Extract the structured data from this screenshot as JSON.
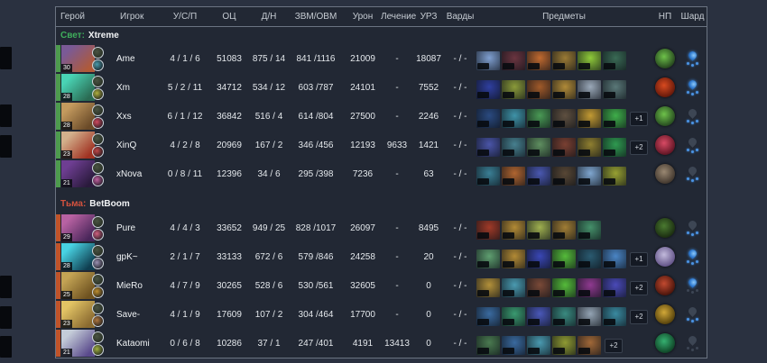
{
  "header": {
    "columns": [
      "Герой",
      "Игрок",
      "У/С/П",
      "ОЦ",
      "Д/Н",
      "ЗВМ/ОВМ",
      "Урон",
      "Лечение",
      "УРЗ",
      "Варды",
      "Предметы",
      "НП",
      "Шард"
    ]
  },
  "colors": {
    "radiant_accent": "#3fae5c",
    "dire_accent": "#d4523e",
    "scepter_active": "#3f8de0",
    "inactive_grey": "#3d4654"
  },
  "teams": [
    {
      "side_label": "Свет:",
      "name": "Xtreme",
      "side_color": "#3fae5c",
      "bar_color": "#4d9b4d",
      "players": [
        {
          "name": "Ame",
          "level": "30",
          "kda": "4 / 1 / 6",
          "net_worth": "51083",
          "lh_dn": "875 / 14",
          "gpm_xpm": "841 /1116",
          "damage": "21009",
          "healing": "-",
          "building_damage": "18087",
          "wards": "- / -",
          "extra_items": "",
          "scepter": true,
          "shard": true,
          "portrait_colors": [
            "#7a5a96",
            "#b05a38"
          ],
          "facet_color": "#4a9aaa",
          "item_colors": [
            "#7f9fd0",
            "#6a3540",
            "#c06a30",
            "#9a7a35",
            "#8fca3a",
            "#3a6a55"
          ],
          "neutral_colors": [
            "#6ec24a",
            "#1f3a1a"
          ]
        },
        {
          "name": "Xm",
          "level": "28",
          "kda": "5 / 2 / 11",
          "net_worth": "34712",
          "lh_dn": "534 / 12",
          "gpm_xpm": "603 /787",
          "damage": "24101",
          "healing": "-",
          "building_damage": "7552",
          "wards": "- / -",
          "extra_items": "",
          "scepter": true,
          "shard": true,
          "portrait_colors": [
            "#49d3b4",
            "#2a6a52"
          ],
          "facet_color": "#b0b040",
          "item_colors": [
            "#2f3f9f",
            "#8a9a3a",
            "#a05a2a",
            "#b08a38",
            "#9aa8b8",
            "#5a7878"
          ],
          "neutral_colors": [
            "#d84a20",
            "#5a1408"
          ]
        },
        {
          "name": "Xxs",
          "level": "28",
          "kda": "6 / 1 / 12",
          "net_worth": "36842",
          "lh_dn": "516 / 4",
          "gpm_xpm": "614 /804",
          "damage": "27500",
          "healing": "-",
          "building_damage": "2246",
          "wards": "- / -",
          "extra_items": "+1",
          "scepter": false,
          "shard": true,
          "portrait_colors": [
            "#c39a5e",
            "#6a4a28"
          ],
          "facet_color": "#d04a60",
          "item_colors": [
            "#2a4a80",
            "#3f93a8",
            "#4a9a55",
            "#5f5040",
            "#c29a33",
            "#3fae4a"
          ],
          "neutral_colors": [
            "#6ec24a",
            "#20401c"
          ]
        },
        {
          "name": "XinQ",
          "level": "23",
          "kda": "4 / 2 / 8",
          "net_worth": "20969",
          "lh_dn": "167 / 2",
          "gpm_xpm": "346 /456",
          "damage": "12193",
          "healing": "9633",
          "building_damage": "1421",
          "wards": "- / -",
          "extra_items": "+2",
          "scepter": false,
          "shard": true,
          "portrait_colors": [
            "#d3b08c",
            "#a03222"
          ],
          "facet_color": "#c04848",
          "item_colors": [
            "#4a55a8",
            "#47808f",
            "#5f8f60",
            "#7a4032",
            "#8f7f30",
            "#2f9a50"
          ],
          "neutral_colors": [
            "#d84a64",
            "#55101e"
          ]
        },
        {
          "name": "xNova",
          "level": "21",
          "kda": "0 / 8 / 11",
          "net_worth": "12396",
          "lh_dn": "34 / 6",
          "gpm_xpm": "295 /398",
          "damage": "7236",
          "healing": "-",
          "building_damage": "63",
          "wards": "- / -",
          "extra_items": "",
          "scepter": false,
          "shard": true,
          "portrait_colors": [
            "#6e3e92",
            "#2a1a3c"
          ],
          "facet_color": "#c060a0",
          "item_colors": [
            "#3a7f95",
            "#b06530",
            "#4a58b0",
            "#584735",
            "#7fa6cf",
            "#97a032"
          ],
          "neutral_colors": [
            "#9a8872",
            "#3a3028"
          ]
        }
      ]
    },
    {
      "side_label": "Тьма:",
      "name": "BetBoom",
      "side_color": "#d4523e",
      "bar_color": "#c05329",
      "players": [
        {
          "name": "Pure",
          "level": "29",
          "kda": "4 / 4 / 3",
          "net_worth": "33652",
          "lh_dn": "949 / 25",
          "gpm_xpm": "828 /1017",
          "damage": "26097",
          "healing": "-",
          "building_damage": "8495",
          "wards": "- / -",
          "extra_items": "",
          "scepter": false,
          "shard": true,
          "portrait_colors": [
            "#b862a2",
            "#49265a"
          ],
          "facet_color": "#d06080",
          "item_colors": [
            "#a03a28",
            "#b28a35",
            "#9fb050",
            "#a07d35",
            "#45906a"
          ],
          "neutral_colors": [
            "#4a7a30",
            "#17260e"
          ]
        },
        {
          "name": "gpK~",
          "level": "28",
          "kda": "2 / 1 / 7",
          "net_worth": "33133",
          "lh_dn": "672 / 6",
          "gpm_xpm": "579 /846",
          "damage": "24258",
          "healing": "-",
          "building_damage": "20",
          "wards": "- / -",
          "extra_items": "+1",
          "scepter": true,
          "shard": true,
          "portrait_colors": [
            "#48d2e2",
            "#0f3e50"
          ],
          "facet_color": "#9a90b0",
          "item_colors": [
            "#5f9f70",
            "#b28a35",
            "#3a47b5",
            "#55bb3a",
            "#2a5a70",
            "#4a85c5"
          ],
          "neutral_colors": [
            "#c2badc",
            "#5a4a80"
          ]
        },
        {
          "name": "MieRo",
          "level": "25",
          "kda": "4 / 7 / 9",
          "net_worth": "30265",
          "lh_dn": "528 / 6",
          "gpm_xpm": "530 /561",
          "damage": "32605",
          "healing": "-",
          "building_damage": "0",
          "wards": "- / -",
          "extra_items": "+2",
          "scepter": true,
          "shard": false,
          "portrait_colors": [
            "#c3a354",
            "#6e5220"
          ],
          "facet_color": "#c09030",
          "item_colors": [
            "#b2903a",
            "#4a9ab0",
            "#7a4a38",
            "#55bb3a",
            "#8f3a90",
            "#4a4ab8"
          ],
          "neutral_colors": [
            "#c24a30",
            "#401008"
          ]
        },
        {
          "name": "Save-",
          "level": "23",
          "kda": "4 / 1 / 9",
          "net_worth": "17609",
          "lh_dn": "107 / 2",
          "gpm_xpm": "304 /464",
          "damage": "17700",
          "healing": "-",
          "building_damage": "0",
          "wards": "- / -",
          "extra_items": "+2",
          "scepter": false,
          "shard": true,
          "portrait_colors": [
            "#e2c364",
            "#8a6a30"
          ],
          "facet_color": "#b07840",
          "item_colors": [
            "#3a6a9f",
            "#3a9a70",
            "#4a58b8",
            "#3a8a80",
            "#93a3b3",
            "#3a8aa0"
          ],
          "neutral_colors": [
            "#d2a838",
            "#4a3808"
          ]
        },
        {
          "name": "Kataomi",
          "level": "21",
          "kda": "0 / 6 / 8",
          "net_worth": "10286",
          "lh_dn": "37 / 1",
          "gpm_xpm": "247 /401",
          "damage": "4191",
          "healing": "13413",
          "building_damage": "0",
          "wards": "- / -",
          "extra_items": "+2",
          "scepter": false,
          "shard": false,
          "portrait_colors": [
            "#c4ccd8",
            "#5a4a8c"
          ],
          "facet_color": "#a0b040",
          "item_colors": [
            "#4a7a50",
            "#3a6a9f",
            "#4a9ab0",
            "#8f9a33",
            "#a06838"
          ],
          "neutral_colors": [
            "#35b070",
            "#0c3a20"
          ]
        }
      ]
    }
  ]
}
